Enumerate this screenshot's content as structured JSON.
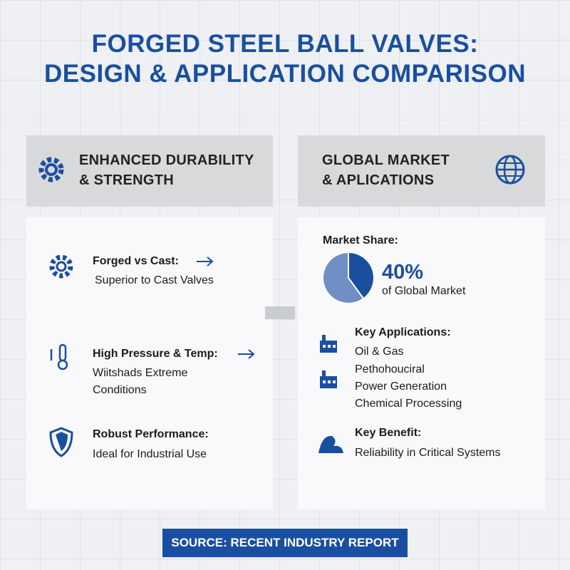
{
  "title": [
    "FORGED STEEL BALL VALVES:",
    "DESIGN & APPLICATION COMPARISON"
  ],
  "left": {
    "heading": [
      "ENHANCED DURABILITY",
      "& STRENGTH"
    ],
    "items": [
      {
        "title": "Forged vs Cast:",
        "text": [
          "Superior to Cast Valves"
        ]
      },
      {
        "title": "High Pressure & Temp:",
        "text": [
          "Wiitshads Extreme",
          "Conditions"
        ]
      },
      {
        "title": "Robust Performance:",
        "text": [
          "Ideal for Industrial Use"
        ]
      }
    ]
  },
  "right": {
    "heading": [
      "GLOBAL MARKET",
      "& APLICATIONS"
    ],
    "market_share": {
      "label": "Market Share:",
      "value": 40,
      "value_label": "40%",
      "caption": "of Global Market"
    },
    "applications": {
      "title": "Key Applications:",
      "items": [
        "Oil & Gas",
        "Pethohouciral",
        "Power Generation",
        "Chemical Processing"
      ]
    },
    "benefit": {
      "title": "Key Benefit:",
      "text": "Reliability in Critical Systems"
    }
  },
  "footer": "SOURCE: RECENT INDUSTRY REPORT"
}
